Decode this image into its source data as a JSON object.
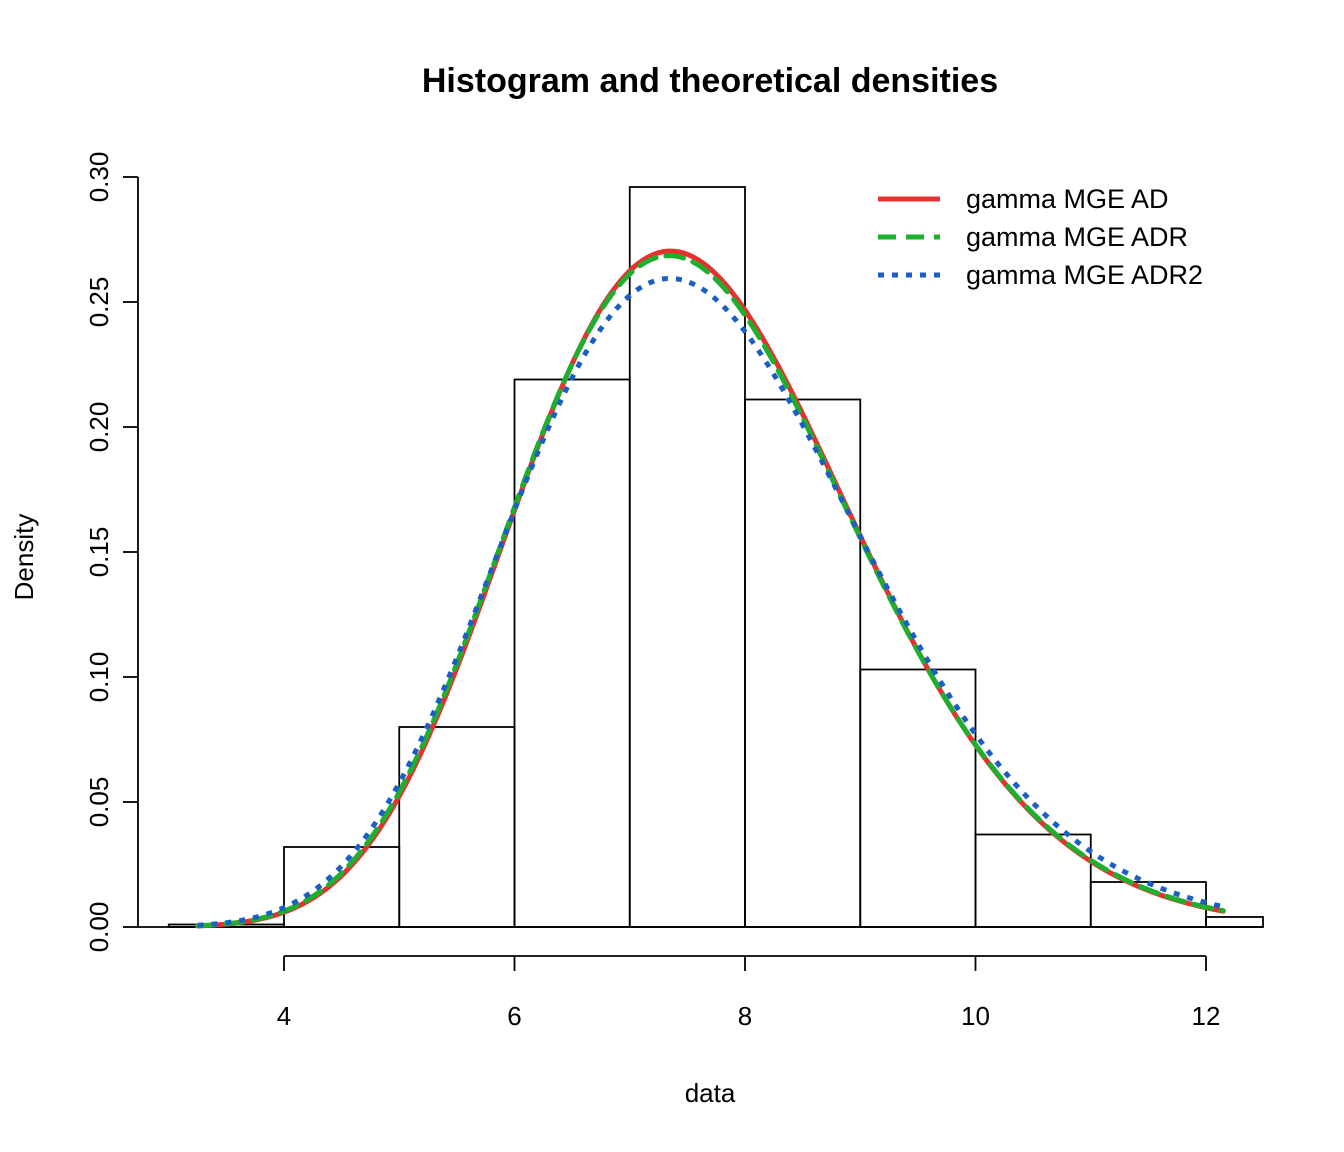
{
  "chart_data": {
    "type": "histogram",
    "title": "Histogram and theoretical densities",
    "xlabel": "data",
    "ylabel": "Density",
    "xlim": [
      3,
      12.5
    ],
    "ylim": [
      0,
      0.3
    ],
    "x_ticks": [
      4,
      6,
      8,
      10,
      12
    ],
    "x_tick_labels": [
      "4",
      "6",
      "8",
      "10",
      "12"
    ],
    "y_ticks": [
      0,
      0.05,
      0.1,
      0.15,
      0.2,
      0.25,
      0.3
    ],
    "y_tick_labels": [
      "0.00",
      "0.05",
      "0.10",
      "0.15",
      "0.20",
      "0.25",
      "0.30"
    ],
    "bins": [
      {
        "x0": 3,
        "x1": 4,
        "density": 0.001
      },
      {
        "x0": 4,
        "x1": 5,
        "density": 0.032
      },
      {
        "x0": 5,
        "x1": 6,
        "density": 0.08
      },
      {
        "x0": 6,
        "x1": 7,
        "density": 0.219
      },
      {
        "x0": 7,
        "x1": 8,
        "density": 0.296
      },
      {
        "x0": 8,
        "x1": 9,
        "density": 0.211
      },
      {
        "x0": 9,
        "x1": 10,
        "density": 0.103
      },
      {
        "x0": 10,
        "x1": 11,
        "density": 0.037
      },
      {
        "x0": 11,
        "x1": 12,
        "density": 0.018
      },
      {
        "x0": 12,
        "x1": 13,
        "density": 0.004
      }
    ],
    "x_range": [
      3.25,
      12.15
    ],
    "series": [
      {
        "name": "gamma MGE AD",
        "color": "#E8302E",
        "dash": "solid",
        "width": 5,
        "shape": 26.0,
        "rate": 3.4
      },
      {
        "name": "gamma MGE ADR",
        "color": "#1FAF2E",
        "dash": "dashed",
        "width": 5,
        "shape": 25.6,
        "rate": 3.35
      },
      {
        "name": "gamma MGE ADR2",
        "color": "#1C5FC4",
        "dash": "dotted",
        "width": 5,
        "shape": 24.0,
        "rate": 3.13
      }
    ],
    "legend_position": "top-right",
    "grid": false
  }
}
